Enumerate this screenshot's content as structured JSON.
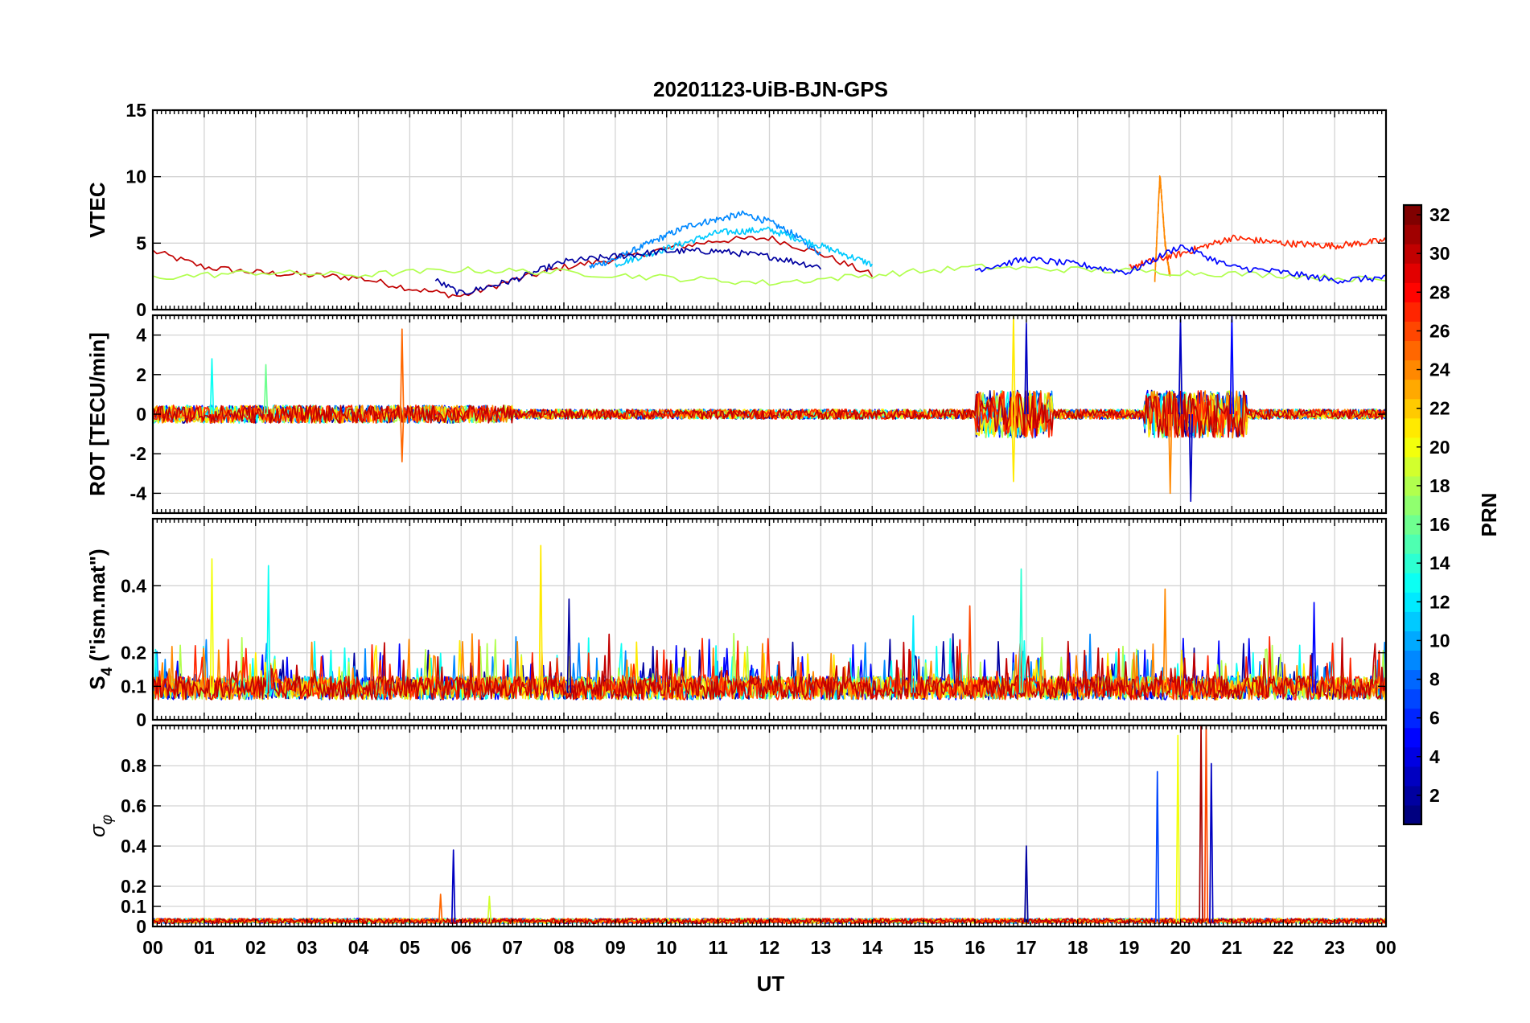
{
  "chart_data": {
    "type": "line",
    "title": "20201123-UiB-BJN-GPS",
    "xlabel": "UT",
    "x_ticks": [
      "00",
      "01",
      "02",
      "03",
      "04",
      "05",
      "06",
      "07",
      "08",
      "09",
      "10",
      "11",
      "12",
      "13",
      "14",
      "15",
      "16",
      "17",
      "18",
      "19",
      "20",
      "21",
      "22",
      "23",
      "00"
    ],
    "xlim": [
      0,
      24
    ],
    "grid": true,
    "panels": [
      {
        "id": "vtec",
        "ylabel": "VTEC",
        "ylim": [
          0,
          15
        ],
        "yticks": [
          "0",
          "5",
          "10",
          "15"
        ],
        "ytick_values": [
          0,
          5,
          10,
          15
        ],
        "series": [
          {
            "prn": 30,
            "x": [
              0,
              1,
              2,
              3,
              4,
              5,
              6,
              7,
              8,
              9,
              10,
              11,
              12,
              13,
              14
            ],
            "y": [
              4.4,
              3.2,
              2.8,
              2.6,
              2.4,
              1.6,
              1.0,
              2.2,
              3.2,
              3.8,
              4.6,
              5.2,
              5.4,
              4.2,
              2.6
            ]
          },
          {
            "prn": 9,
            "x": [
              8.5,
              9,
              10,
              10.5,
              11,
              11.5,
              12,
              12.5,
              13
            ],
            "y": [
              3.2,
              3.8,
              5.6,
              6.4,
              6.8,
              7.2,
              6.6,
              5.6,
              4.2
            ]
          },
          {
            "prn": 11,
            "x": [
              9,
              10,
              11,
              12,
              13,
              14
            ],
            "y": [
              3.4,
              4.6,
              5.8,
              6.0,
              4.8,
              3.4
            ]
          },
          {
            "prn": 2,
            "x": [
              5.5,
              6,
              7,
              8,
              9,
              10,
              11,
              12,
              13
            ],
            "y": [
              2.2,
              1.2,
              2.2,
              3.6,
              4.0,
              4.4,
              4.4,
              4.0,
              3.2
            ]
          },
          {
            "prn": 24,
            "x": [
              19.5,
              19.6,
              19.7,
              19.8
            ],
            "y": [
              2.2,
              10.2,
              5.0,
              2.4
            ]
          },
          {
            "prn": 27,
            "x": [
              19,
              20,
              21,
              22,
              23,
              24
            ],
            "y": [
              3.2,
              4.2,
              5.4,
              5.0,
              4.8,
              5.2
            ]
          },
          {
            "prn": 18,
            "x": [
              0,
              2,
              4,
              6,
              8,
              10,
              12,
              14,
              16,
              18,
              20,
              22,
              24
            ],
            "y": [
              2.4,
              2.8,
              2.6,
              3.0,
              2.8,
              2.4,
              2.0,
              2.6,
              3.2,
              3.0,
              2.8,
              2.6,
              2.2
            ]
          },
          {
            "prn": 5,
            "x": [
              16,
              17,
              18,
              19,
              20,
              21,
              22,
              23,
              24
            ],
            "y": [
              3.0,
              3.8,
              3.4,
              2.8,
              4.8,
              3.2,
              2.8,
              2.2,
              2.4
            ]
          }
        ]
      },
      {
        "id": "rot",
        "ylabel": "ROT [TECU/min]",
        "ylim": [
          -5,
          5
        ],
        "yticks": [
          "-4",
          "-2",
          "0",
          "2",
          "4"
        ],
        "ytick_values": [
          -4,
          -2,
          0,
          2,
          4
        ],
        "spikes": [
          {
            "prn": 13,
            "x": 1.15,
            "y": 2.8
          },
          {
            "prn": 16,
            "x": 2.2,
            "y": 2.5
          },
          {
            "prn": 25,
            "x": 4.85,
            "y": 4.3
          },
          {
            "prn": 25,
            "x": 4.85,
            "y": -2.4
          },
          {
            "prn": 21,
            "x": 16.75,
            "y": 5.0
          },
          {
            "prn": 21,
            "x": 16.75,
            "y": -3.4
          },
          {
            "prn": 3,
            "x": 17.0,
            "y": 4.6
          },
          {
            "prn": 3,
            "x": 20.0,
            "y": 4.9
          },
          {
            "prn": 3,
            "x": 20.2,
            "y": -4.4
          },
          {
            "prn": 5,
            "x": 21.0,
            "y": 5.1
          },
          {
            "prn": 24,
            "x": 19.8,
            "y": -4.0
          }
        ]
      },
      {
        "id": "s4",
        "ylabel": "S4 (\"ism.mat\")",
        "ylabel_main": "S",
        "ylabel_sub": "4",
        "ylabel_rest": " (\"ism.mat\")",
        "ylim": [
          0,
          0.6
        ],
        "yticks": [
          "0",
          "0.1",
          "0.2",
          "0.4"
        ],
        "ytick_values": [
          0,
          0.1,
          0.2,
          0.4
        ],
        "spikes": [
          {
            "prn": 20,
            "x": 1.15,
            "y": 0.48
          },
          {
            "prn": 13,
            "x": 2.25,
            "y": 0.46
          },
          {
            "prn": 21,
            "x": 7.55,
            "y": 0.52
          },
          {
            "prn": 2,
            "x": 8.1,
            "y": 0.36
          },
          {
            "prn": 26,
            "x": 15.9,
            "y": 0.34
          },
          {
            "prn": 14,
            "x": 16.9,
            "y": 0.45
          },
          {
            "prn": 24,
            "x": 19.7,
            "y": 0.39
          },
          {
            "prn": 5,
            "x": 22.6,
            "y": 0.35
          },
          {
            "prn": 12,
            "x": 14.8,
            "y": 0.31
          }
        ]
      },
      {
        "id": "sigma",
        "ylabel": "σφ",
        "ylabel_main": "σ",
        "ylabel_sub": "φ",
        "ylim": [
          0,
          1
        ],
        "yticks": [
          "0",
          "0.1",
          "0.2",
          "0.4",
          "0.6",
          "0.8"
        ],
        "ytick_values": [
          0,
          0.1,
          0.2,
          0.4,
          0.6,
          0.8
        ],
        "spikes": [
          {
            "prn": 3,
            "x": 5.85,
            "y": 0.38
          },
          {
            "prn": 2,
            "x": 17.0,
            "y": 0.4
          },
          {
            "prn": 7,
            "x": 19.55,
            "y": 0.77
          },
          {
            "prn": 20,
            "x": 19.95,
            "y": 0.95
          },
          {
            "prn": 31,
            "x": 20.4,
            "y": 1.0
          },
          {
            "prn": 26,
            "x": 20.5,
            "y": 1.0
          },
          {
            "prn": 3,
            "x": 20.6,
            "y": 0.81
          },
          {
            "prn": 25,
            "x": 5.6,
            "y": 0.16
          },
          {
            "prn": 19,
            "x": 6.55,
            "y": 0.15
          }
        ]
      }
    ],
    "colorbar": {
      "label": "PRN",
      "range": [
        1,
        32
      ],
      "ticks": [
        "2",
        "4",
        "6",
        "8",
        "10",
        "12",
        "14",
        "16",
        "18",
        "20",
        "22",
        "24",
        "26",
        "28",
        "30",
        "32"
      ],
      "tick_values": [
        2,
        4,
        6,
        8,
        10,
        12,
        14,
        16,
        18,
        20,
        22,
        24,
        26,
        28,
        30,
        32
      ],
      "colormap": "jet"
    }
  }
}
